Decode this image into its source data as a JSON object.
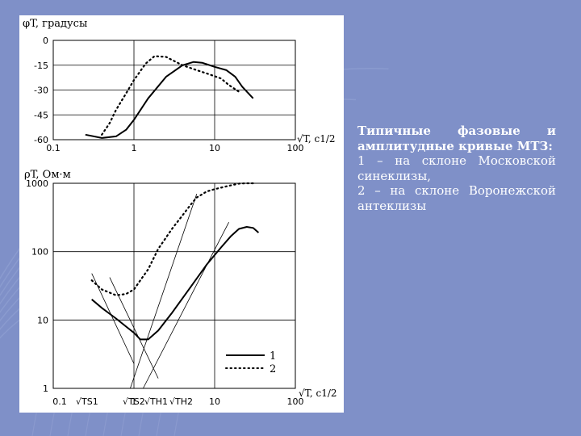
{
  "colors": {
    "background": "#7f90c8",
    "background_grid": "#9aa8d6",
    "figure_bg": "#ffffff",
    "ink": "#000000",
    "caption_text": "#ffffff"
  },
  "caption": {
    "title": "Типичные фазовые и амплитудные кривые МТЗ:",
    "line1": "1 – на склоне Московской синеклизы,",
    "line2": "2 – на склоне Воронежской антеклизы"
  },
  "chart_data": [
    {
      "type": "line",
      "title": "φT, градусы",
      "xlabel": "√T, с1/2",
      "x_scale": "log",
      "xlim": [
        0.1,
        100
      ],
      "ylim": [
        -60,
        0
      ],
      "x_ticks": [
        "0.1",
        "1",
        "10",
        "100"
      ],
      "y_ticks": [
        "0",
        "-15",
        "-30",
        "-45",
        "-60"
      ],
      "grid": true,
      "series": [
        {
          "name": "1",
          "style": "solid",
          "points": [
            [
              0.25,
              -57
            ],
            [
              0.4,
              -59
            ],
            [
              0.6,
              -58
            ],
            [
              0.8,
              -54
            ],
            [
              1.0,
              -48
            ],
            [
              1.5,
              -35
            ],
            [
              2.5,
              -22
            ],
            [
              4,
              -15
            ],
            [
              5.5,
              -13
            ],
            [
              7,
              -13.5
            ],
            [
              10,
              -16
            ],
            [
              14,
              -18
            ],
            [
              18,
              -22
            ],
            [
              22,
              -28
            ],
            [
              30,
              -35
            ]
          ]
        },
        {
          "name": "2",
          "style": "dotted",
          "points": [
            [
              0.4,
              -57
            ],
            [
              0.5,
              -50
            ],
            [
              0.6,
              -42
            ],
            [
              0.8,
              -32
            ],
            [
              1.0,
              -24
            ],
            [
              1.4,
              -14
            ],
            [
              1.8,
              -9.5
            ],
            [
              2.5,
              -10
            ],
            [
              4,
              -15
            ],
            [
              6,
              -18
            ],
            [
              8,
              -20
            ],
            [
              12,
              -23
            ],
            [
              15,
              -27
            ],
            [
              20,
              -31
            ]
          ]
        }
      ]
    },
    {
      "type": "line",
      "title": "ρT, Ом·м",
      "xlabel": "√T, с1/2",
      "x_scale": "log",
      "y_scale": "log",
      "xlim": [
        0.1,
        100
      ],
      "ylim": [
        1,
        1000
      ],
      "x_ticks": [
        "0.1",
        "1",
        "10",
        "100"
      ],
      "y_ticks": [
        "1",
        "10",
        "100",
        "1000"
      ],
      "grid": true,
      "legend": {
        "position": "bottom-right",
        "entries": [
          "1",
          "2"
        ]
      },
      "x_markers": [
        "√TS1",
        "√TS2",
        "√TH1",
        "√TH2"
      ],
      "series": [
        {
          "name": "1",
          "style": "solid",
          "points": [
            [
              0.3,
              20
            ],
            [
              0.4,
              15
            ],
            [
              0.6,
              10.5
            ],
            [
              0.8,
              8
            ],
            [
              1.0,
              6.5
            ],
            [
              1.2,
              5.2
            ],
            [
              1.5,
              5.2
            ],
            [
              2,
              7
            ],
            [
              3,
              13
            ],
            [
              5,
              30
            ],
            [
              8,
              65
            ],
            [
              12,
              115
            ],
            [
              16,
              170
            ],
            [
              20,
              215
            ],
            [
              25,
              230
            ],
            [
              30,
              222
            ],
            [
              35,
              190
            ]
          ]
        },
        {
          "name": "2",
          "style": "dotted",
          "points": [
            [
              0.3,
              38
            ],
            [
              0.4,
              28
            ],
            [
              0.6,
              23
            ],
            [
              0.8,
              24
            ],
            [
              1.0,
              28
            ],
            [
              1.2,
              38
            ],
            [
              1.5,
              55
            ],
            [
              2,
              110
            ],
            [
              3,
              220
            ],
            [
              4,
              340
            ],
            [
              5,
              480
            ],
            [
              6,
              620
            ],
            [
              8,
              760
            ],
            [
              10,
              820
            ],
            [
              15,
              920
            ],
            [
              20,
              990
            ],
            [
              25,
              1000
            ],
            [
              30,
              1000
            ]
          ]
        }
      ],
      "reference_lines": [
        {
          "points": [
            [
              0.3,
              48
            ],
            [
              1.0,
              2.3
            ]
          ]
        },
        {
          "points": [
            [
              0.5,
              42
            ],
            [
              2.0,
              1.4
            ]
          ]
        },
        {
          "points": [
            [
              0.9,
              1
            ],
            [
              6.0,
              700
            ]
          ]
        },
        {
          "points": [
            [
              1.3,
              1
            ],
            [
              15.0,
              270
            ]
          ]
        }
      ]
    }
  ]
}
